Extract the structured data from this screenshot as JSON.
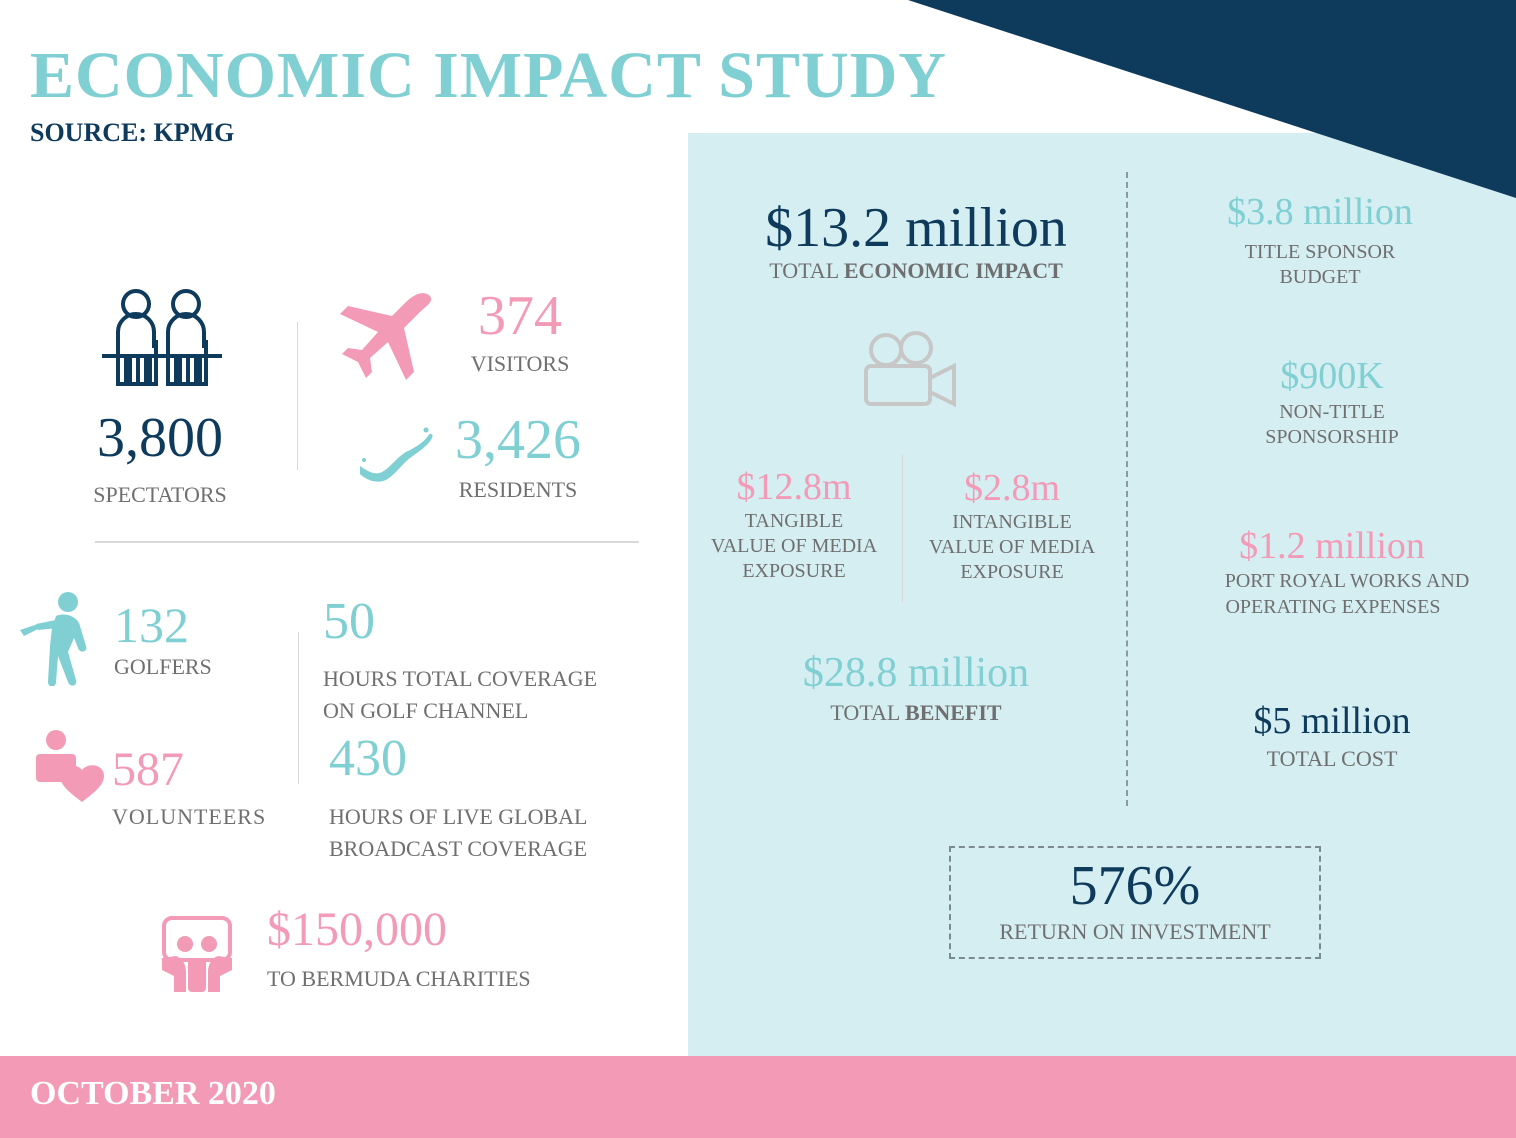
{
  "header": {
    "title": "ECONOMIC IMPACT STUDY",
    "source": "SOURCE: KPMG"
  },
  "colors": {
    "navy": "#0e3a5c",
    "teal": "#7fcfd3",
    "pink": "#f39ab6",
    "panel": "#d5eef1",
    "gray": "#6f6f6f"
  },
  "left": {
    "spectators": {
      "value": "3,800",
      "label": "SPECTATORS",
      "icon": "spectators-icon"
    },
    "visitors": {
      "value": "374",
      "label": "VISITORS",
      "icon": "airplane-icon"
    },
    "residents": {
      "value": "3,426",
      "label": "RESIDENTS",
      "icon": "bermuda-map-icon"
    },
    "golfers": {
      "value": "132",
      "label": "GOLFERS",
      "icon": "golfer-icon"
    },
    "hours_golf_channel": {
      "value": "50",
      "label_line1": "HOURS TOTAL COVERAGE",
      "label_line2": "ON GOLF CHANNEL"
    },
    "volunteers": {
      "value": "587",
      "label": "VOLUNTEERS",
      "icon": "volunteer-heart-icon"
    },
    "hours_broadcast": {
      "value": "430",
      "label_line1": "HOURS OF LIVE GLOBAL",
      "label_line2": "BROADCAST COVERAGE"
    },
    "charities": {
      "value": "$150,000",
      "label": "TO BERMUDA CHARITIES",
      "icon": "charity-people-icon"
    }
  },
  "right": {
    "total_impact": {
      "value": "$13.2 million",
      "label_prefix": "TOTAL ",
      "label_bold": "ECONOMIC IMPACT"
    },
    "camera_icon": "video-camera-icon",
    "tangible": {
      "value": "$12.8m",
      "line1": "TANGIBLE",
      "line2": "VALUE OF MEDIA",
      "line3": "EXPOSURE"
    },
    "intangible": {
      "value": "$2.8m",
      "line1": "INTANGIBLE",
      "line2": "VALUE OF MEDIA",
      "line3": "EXPOSURE"
    },
    "total_benefit": {
      "value": "$28.8 million",
      "label_prefix": "TOTAL ",
      "label_bold": "BENEFIT"
    },
    "title_sponsor": {
      "value": "$3.8 million",
      "line1": "TITLE SPONSOR",
      "line2": "BUDGET"
    },
    "non_title": {
      "value": "$900K",
      "line1": "NON-TITLE",
      "line2": "SPONSORSHIP"
    },
    "port_royal": {
      "value": "$1.2 million",
      "line1": "PORT ROYAL WORKS AND",
      "line2": "OPERATING EXPENSES"
    },
    "total_cost": {
      "value": "$5 million",
      "label": "TOTAL COST"
    },
    "roi": {
      "value": "576%",
      "label": "RETURN ON INVESTMENT"
    }
  },
  "footer": {
    "date": "OCTOBER 2020"
  }
}
